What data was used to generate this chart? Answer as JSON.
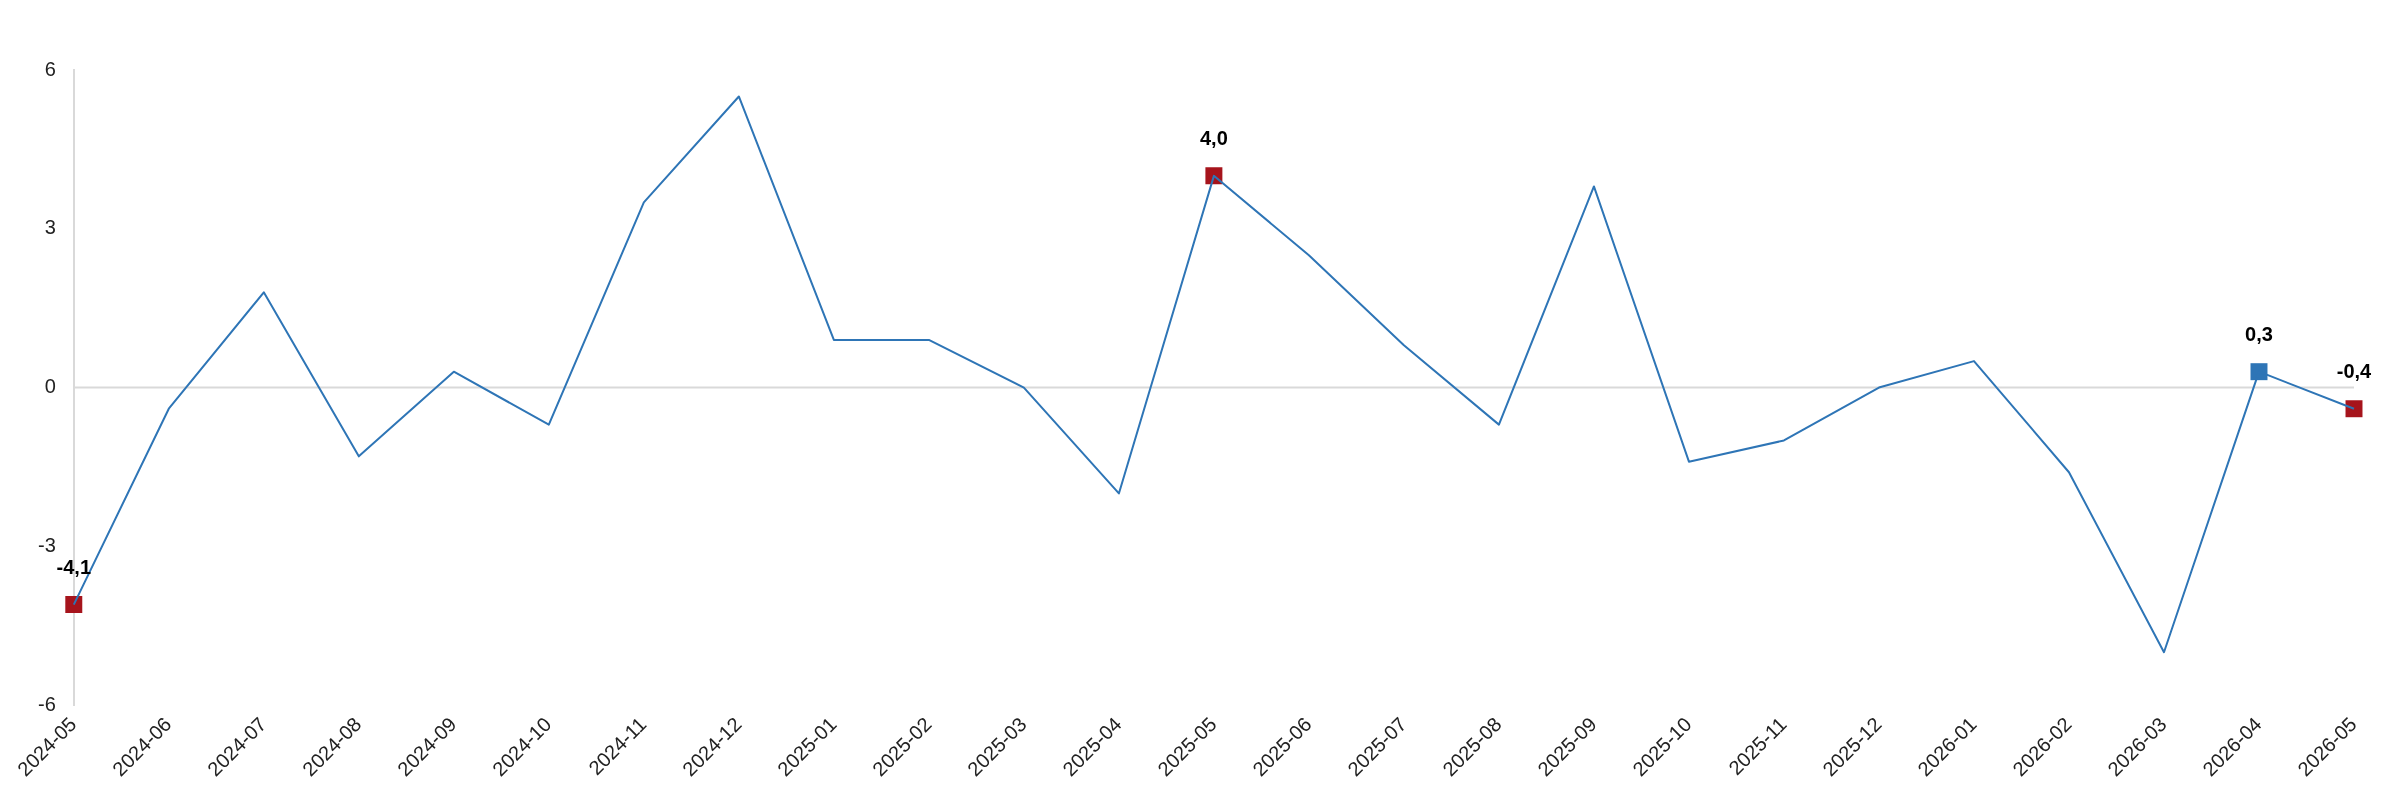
{
  "chart_data": {
    "type": "line",
    "categories": [
      "2024-05",
      "2024-06",
      "2024-07",
      "2024-08",
      "2024-09",
      "2024-10",
      "2024-11",
      "2024-12",
      "2025-01",
      "2025-02",
      "2025-03",
      "2025-04",
      "2025-05",
      "2025-06",
      "2025-07",
      "2025-08",
      "2025-09",
      "2025-10",
      "2025-11",
      "2025-12",
      "2026-01",
      "2026-02",
      "2026-03",
      "2026-04",
      "2026-05"
    ],
    "series": [
      {
        "color": "#2e75b6",
        "values": [
          -4.1,
          -0.4,
          1.8,
          -1.3,
          0.3,
          -0.7,
          3.5,
          5.5,
          0.9,
          0.9,
          0.0,
          -2.0,
          4.0,
          2.5,
          0.8,
          -0.7,
          3.8,
          -1.4,
          -1.0,
          0.0,
          0.5,
          -1.6,
          -5.0,
          0.3,
          -0.4
        ]
      },
      {
        "type": "scatter",
        "marker": "square",
        "values": [
          -4.1,
          null,
          null,
          null,
          null,
          null,
          null,
          null,
          null,
          null,
          null,
          null,
          4.0,
          null,
          null,
          null,
          null,
          null,
          null,
          null,
          null,
          null,
          null,
          0.3,
          -0.4
        ],
        "colors": [
          "#a6141c",
          null,
          null,
          null,
          null,
          null,
          null,
          null,
          null,
          null,
          null,
          null,
          "#a6141c",
          null,
          null,
          null,
          null,
          null,
          null,
          null,
          null,
          null,
          null,
          "#2e75b6",
          "#a6141c"
        ],
        "value_labels": [
          "-4,1",
          null,
          null,
          null,
          null,
          null,
          null,
          null,
          null,
          null,
          null,
          null,
          "4,0",
          null,
          null,
          null,
          null,
          null,
          null,
          null,
          null,
          null,
          null,
          "0,3",
          "-0,4"
        ]
      }
    ],
    "line_style": "solid",
    "grid": false,
    "legend": false,
    "ylim": [
      -6,
      6
    ],
    "yticks": [
      -6,
      -3,
      0,
      3,
      6
    ],
    "ref_lines": [
      {
        "axis": "y",
        "value": 0,
        "color": "#d9d9d9"
      }
    ]
  }
}
